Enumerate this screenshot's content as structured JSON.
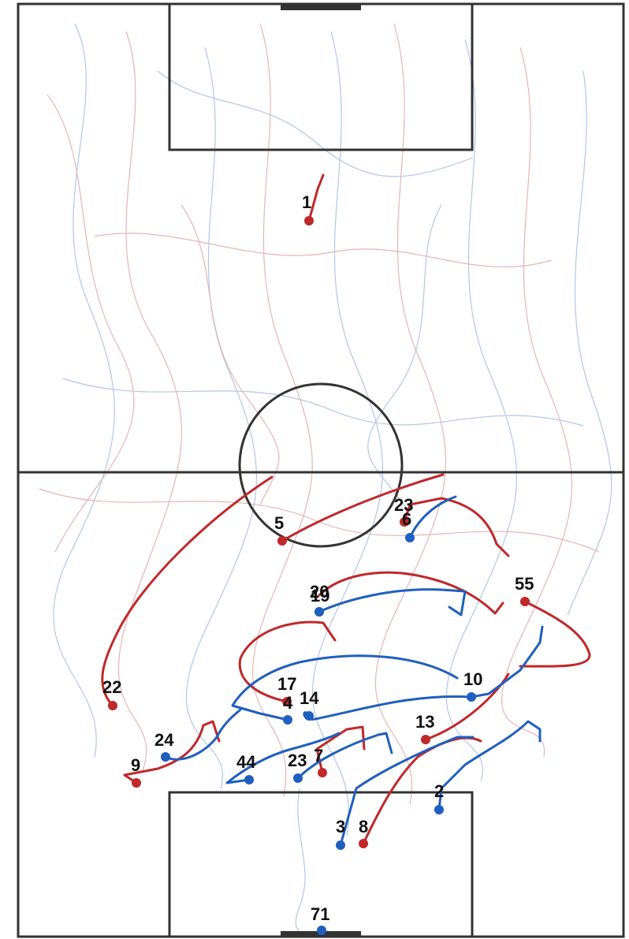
{
  "colors": {
    "background": "#ffffff",
    "pitch_lines": "#333333",
    "team_red": "#c0282a",
    "team_blue": "#1f5fbf",
    "label": "#111111"
  },
  "pitch": {
    "orientation": "vertical",
    "features": [
      "touchlines",
      "halfway-line",
      "center-circle",
      "penalty-area-top",
      "penalty-area-bottom",
      "goal-top",
      "goal-bottom"
    ]
  },
  "teams": [
    {
      "id": "red",
      "color": "#c0282a",
      "players": [
        {
          "number": "1"
        },
        {
          "number": "5"
        },
        {
          "number": "23"
        },
        {
          "number": "55"
        },
        {
          "number": "20"
        },
        {
          "number": "22"
        },
        {
          "number": "17"
        },
        {
          "number": "13"
        },
        {
          "number": "9"
        },
        {
          "number": "7"
        },
        {
          "number": "8"
        }
      ]
    },
    {
      "id": "blue",
      "color": "#1f5fbf",
      "players": [
        {
          "number": "6"
        },
        {
          "number": "19"
        },
        {
          "number": "10"
        },
        {
          "number": "4"
        },
        {
          "number": "14"
        },
        {
          "number": "24"
        },
        {
          "number": "44"
        },
        {
          "number": "23"
        },
        {
          "number": "2"
        },
        {
          "number": "3"
        },
        {
          "number": "71"
        }
      ]
    }
  ]
}
